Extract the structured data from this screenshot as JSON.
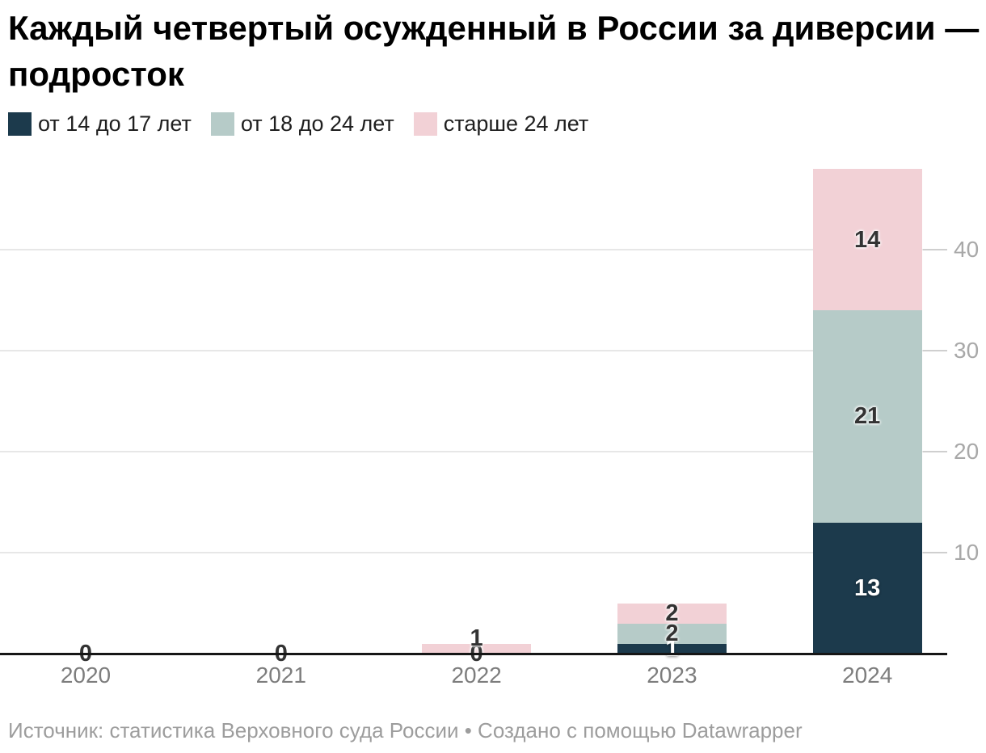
{
  "title": "Каждый четвертый осужденный в России за диверсии — подросток",
  "source_note": "Источник: статистика Верховного суда России • Создано с помощью Datawrapper",
  "colors": {
    "age_14_17": "#1c3a4c",
    "age_18_24": "#b6cbc8",
    "age_over_24": "#f2d1d6",
    "axis": "#161616",
    "gridline": "#e7e7e7",
    "x_label": "#7d7d7d",
    "y_label": "#a8a8a8",
    "note": "#9d9d9d"
  },
  "chart_data": {
    "type": "bar",
    "stacked": true,
    "title": "Каждый четвертый осужденный в России за диверсии — подросток",
    "categories": [
      "2020",
      "2021",
      "2022",
      "2023",
      "2024"
    ],
    "series": [
      {
        "name": "от 14 до 17 лет",
        "color": "#1c3a4c",
        "label_color": "light",
        "values": [
          0,
          0,
          0,
          1,
          13
        ]
      },
      {
        "name": "от 18 до 24 лет",
        "color": "#b6cbc8",
        "label_color": "dark",
        "values": [
          0,
          0,
          0,
          2,
          21
        ]
      },
      {
        "name": "старше 24 лет",
        "color": "#f2d1d6",
        "label_color": "dark",
        "values": [
          0,
          0,
          1,
          2,
          14
        ]
      }
    ],
    "totals": [
      0,
      0,
      1,
      5,
      48
    ],
    "zero_label": "0",
    "yticks": [
      10,
      20,
      30,
      40
    ],
    "ylim": [
      0,
      48.2
    ],
    "grid": "horizontal",
    "legend_position": "top",
    "ytick_side": "right",
    "xlabel": "",
    "ylabel": ""
  }
}
